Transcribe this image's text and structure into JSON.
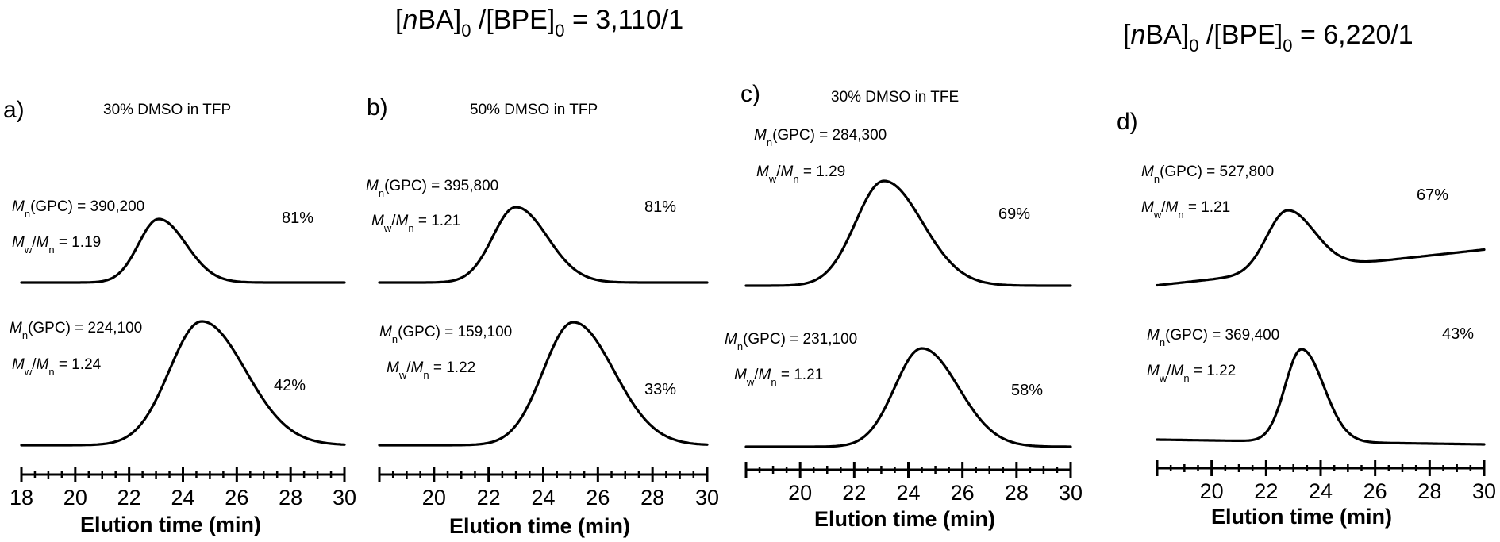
{
  "headers": [
    {
      "label": "[nBA]0 /[BPE]0 = 3,110/1",
      "italic": "n",
      "mono": "BA]",
      "sub0": "0",
      "mid": " /[BPE]",
      "sub1": "0",
      "tail": " = 3,110/1"
    },
    {
      "label": "[nBA]0 /[BPE]0 = 6,220/1",
      "italic": "n",
      "mono": "BA]",
      "sub0": "0",
      "mid": " /[BPE]",
      "sub1": "0",
      "tail": " = 6,220/1"
    }
  ],
  "chart_data": [
    {
      "type": "line",
      "panel": "a)",
      "condition": "30% DMSO in TFP",
      "xlabel": "Elution time (min)",
      "xlim": [
        18,
        30
      ],
      "xticks": [
        "18",
        "20",
        "22",
        "24",
        "26",
        "28",
        "30"
      ],
      "series": [
        {
          "label": "81%",
          "mn": "= 390,200",
          "dispersity": "= 1.19",
          "peak_x": 23.1,
          "width": 0.75,
          "baseline_start": 0.0,
          "baseline_end": 0.0
        },
        {
          "label": "42%",
          "mn": "= 224,100",
          "dispersity": "= 1.24",
          "peak_x": 24.7,
          "width": 1.2,
          "baseline_start": 0.0,
          "baseline_end": 0.0
        }
      ]
    },
    {
      "type": "line",
      "panel": "b)",
      "condition": "50% DMSO in TFP",
      "xlabel": "Elution time (min)",
      "xlim": [
        18,
        30
      ],
      "xticks": [
        "20",
        "22",
        "24",
        "26",
        "28",
        "30"
      ],
      "series": [
        {
          "label": "81%",
          "mn": "= 395,800",
          "dispersity": "= 1.21",
          "peak_x": 23.0,
          "width": 0.85,
          "baseline_start": 0.0,
          "baseline_end": 0.0
        },
        {
          "label": "33%",
          "mn": "= 159,100",
          "dispersity": "= 1.22",
          "peak_x": 25.1,
          "width": 1.1,
          "baseline_start": 0.0,
          "baseline_end": 0.0
        }
      ]
    },
    {
      "type": "line",
      "panel": "c)",
      "condition": "30% DMSO in TFE",
      "xlabel": "Elution time (min)",
      "xlim": [
        18,
        30
      ],
      "xticks": [
        "20",
        "22",
        "24",
        "26",
        "28",
        "30"
      ],
      "series": [
        {
          "label": "69%",
          "mn": "= 284,300",
          "dispersity": "= 1.29",
          "peak_x": 23.1,
          "width": 1.05,
          "baseline_start": 0.0,
          "baseline_end": 0.0
        },
        {
          "label": "58%",
          "mn": "= 231,100",
          "dispersity": "= 1.21",
          "peak_x": 24.5,
          "width": 1.0,
          "baseline_start": 0.0,
          "baseline_end": 0.0
        }
      ]
    },
    {
      "type": "line",
      "panel": "d)",
      "condition": "",
      "xlabel": "Elution time (min)",
      "xlim": [
        18,
        30
      ],
      "xticks": [
        "20",
        "22",
        "24",
        "26",
        "28",
        "30"
      ],
      "series": [
        {
          "label": "67%",
          "mn": "= 527,800",
          "dispersity": "= 1.21",
          "peak_x": 22.8,
          "width": 0.75,
          "baseline_start": -0.05,
          "baseline_end": 0.45
        },
        {
          "label": "43%",
          "mn": "= 369,400",
          "dispersity": "= 1.22",
          "peak_x": 23.3,
          "width": 0.6,
          "baseline_start": 0.05,
          "baseline_end": 0.0
        }
      ]
    }
  ]
}
